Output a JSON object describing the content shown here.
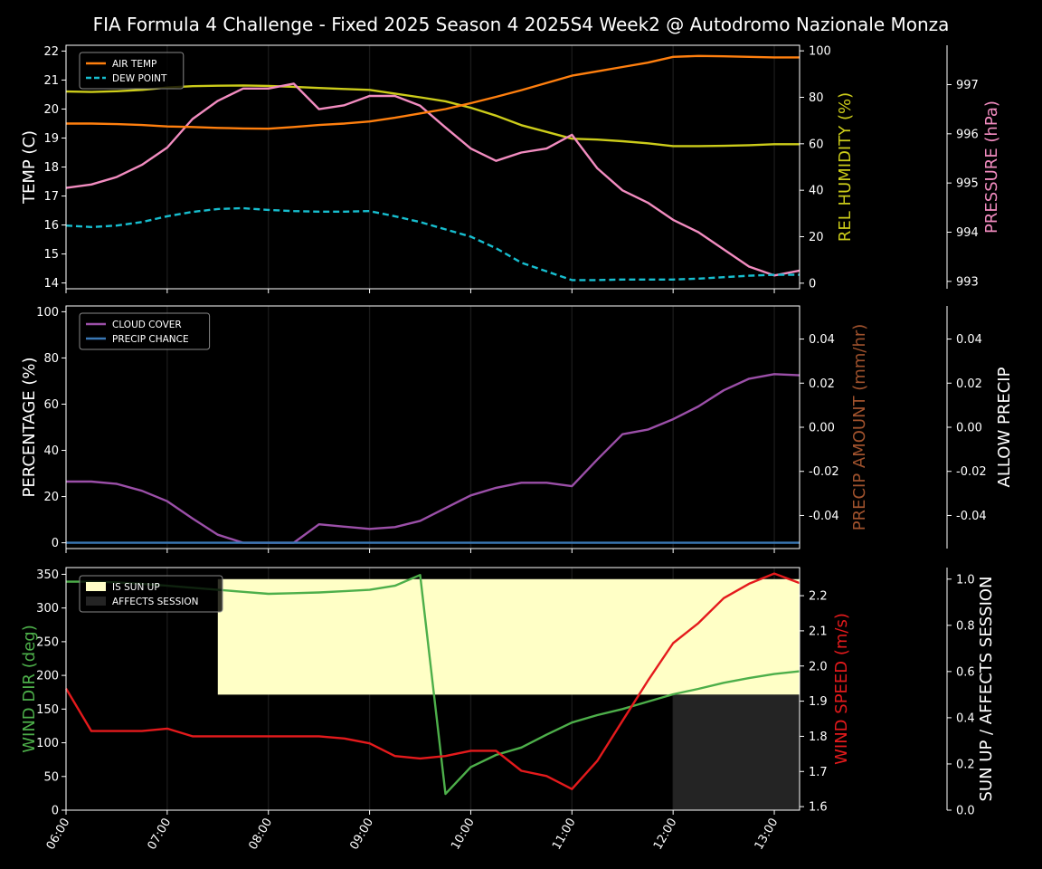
{
  "title": "FIA Formula 4 Challenge - Fixed 2025 Season 4 2025S4 Week2 @ Autodromo Nazionale Monza",
  "colors": {
    "background": "#000000",
    "axis": "#ffffff",
    "air_temp": "#ff7f0e",
    "dew_point": "#17becf",
    "humidity": "#cccc1a",
    "pressure": "#f28cc0",
    "cloud": "#9b4fa8",
    "precip": "#3a78b5",
    "precip_amount_label": "#a0522d",
    "wind_dir": "#4daf4a",
    "wind_speed": "#e41a1c",
    "sun_up": "#ffffc6",
    "affects_session": "#242424"
  },
  "chart_data": [
    {
      "type": "line",
      "panel": "temperature",
      "x": [
        "06:00",
        "06:15",
        "06:30",
        "06:45",
        "07:00",
        "07:15",
        "07:30",
        "07:45",
        "08:00",
        "08:15",
        "08:30",
        "08:45",
        "09:00",
        "09:15",
        "09:30",
        "09:45",
        "10:00",
        "10:15",
        "10:30",
        "10:45",
        "11:00",
        "11:15",
        "11:30",
        "11:45",
        "12:00",
        "12:15",
        "12:30",
        "12:45",
        "13:00",
        "13:15"
      ],
      "xticks": [
        "06:00",
        "07:00",
        "08:00",
        "09:00",
        "10:00",
        "11:00",
        "12:00",
        "13:00"
      ],
      "xlim": [
        "06:00",
        "13:15"
      ],
      "ylabel": "TEMP (C)",
      "ylim": [
        13.8,
        22.2
      ],
      "yticks": [
        14,
        15,
        16,
        17,
        18,
        19,
        20,
        21,
        22
      ],
      "y2label": "REL HUMIDITY (%)",
      "y2lim": [
        -2.4,
        102.4
      ],
      "y2ticks": [
        0,
        20,
        40,
        60,
        80,
        100
      ],
      "y3label": "PRESSURE (hPa)",
      "y3lim": [
        992.85,
        997.8
      ],
      "y3ticks": [
        993,
        994,
        995,
        996,
        997
      ],
      "legend_position": "top-left",
      "series": [
        {
          "name": "AIR TEMP",
          "axis": "y",
          "style": "solid",
          "values": [
            19.5,
            19.5,
            19.48,
            19.45,
            19.4,
            19.38,
            19.35,
            19.33,
            19.32,
            19.38,
            19.45,
            19.5,
            19.57,
            19.7,
            19.85,
            20.0,
            20.2,
            20.42,
            20.65,
            20.9,
            21.15,
            21.3,
            21.45,
            21.6,
            21.8,
            21.83,
            21.82,
            21.8,
            21.78,
            21.78
          ]
        },
        {
          "name": "DEW POINT",
          "axis": "y",
          "style": "dashed",
          "values": [
            15.98,
            15.93,
            15.98,
            16.1,
            16.3,
            16.45,
            16.55,
            16.58,
            16.52,
            16.48,
            16.46,
            16.46,
            16.48,
            16.3,
            16.1,
            15.85,
            15.6,
            15.2,
            14.7,
            14.4,
            14.1,
            14.1,
            14.12,
            14.12,
            14.12,
            14.15,
            14.2,
            14.25,
            14.28,
            14.28
          ]
        },
        {
          "name": "REL HUMIDITY",
          "axis": "y2",
          "style": "solid",
          "unlabeled": true,
          "values": [
            82.5,
            82.3,
            82.6,
            83.2,
            84.2,
            84.8,
            85.0,
            85.1,
            84.9,
            84.5,
            84.0,
            83.6,
            83.2,
            81.6,
            80.0,
            78.3,
            75.5,
            72.1,
            68.0,
            65.1,
            62.2,
            61.8,
            61.1,
            60.2,
            59.0,
            59.0,
            59.1,
            59.4,
            59.8,
            59.8
          ]
        },
        {
          "name": "PRESSURE",
          "axis": "y3",
          "style": "solid",
          "unlabeled": true,
          "values": [
            994.9,
            994.97,
            995.12,
            995.37,
            995.72,
            996.3,
            996.67,
            996.92,
            996.92,
            997.02,
            996.5,
            996.58,
            996.77,
            996.77,
            996.57,
            996.13,
            995.7,
            995.45,
            995.62,
            995.7,
            995.98,
            995.3,
            994.85,
            994.6,
            994.25,
            994.0,
            993.65,
            993.3,
            993.12,
            993.22
          ]
        }
      ]
    },
    {
      "type": "line",
      "panel": "clouds",
      "x": [
        "06:00",
        "06:15",
        "06:30",
        "06:45",
        "07:00",
        "07:15",
        "07:30",
        "07:45",
        "08:00",
        "08:15",
        "08:30",
        "08:45",
        "09:00",
        "09:15",
        "09:30",
        "09:45",
        "10:00",
        "10:15",
        "10:30",
        "10:45",
        "11:00",
        "11:15",
        "11:30",
        "11:45",
        "12:00",
        "12:15",
        "12:30",
        "12:45",
        "13:00",
        "13:15"
      ],
      "ylabel": "PERCENTAGE (%)",
      "ylim": [
        -2.5,
        102.5
      ],
      "yticks": [
        0,
        20,
        40,
        60,
        80,
        100
      ],
      "y2label": "PRECIP AMOUNT (mm/hr)",
      "y2lim": [
        -0.055,
        0.055
      ],
      "y2ticks": [
        -0.04,
        -0.02,
        0.0,
        0.02,
        0.04
      ],
      "y3label": "ALLOW PRECIP",
      "y3lim": [
        -0.055,
        0.055
      ],
      "y3ticks": [
        -0.04,
        -0.02,
        0.0,
        0.02,
        0.04
      ],
      "legend_position": "top-left",
      "series": [
        {
          "name": "CLOUD COVER",
          "values": [
            26.5,
            26.5,
            25.5,
            22.5,
            18.0,
            10.5,
            3.5,
            0,
            0,
            0,
            8.0,
            7.0,
            6.0,
            6.8,
            9.5,
            15.0,
            20.5,
            23.8,
            26.0,
            26.0,
            24.5,
            36.0,
            47.0,
            49.0,
            53.5,
            59.0,
            66.0,
            71.0,
            73.0,
            72.5
          ]
        },
        {
          "name": "PRECIP CHANCE",
          "values": [
            0,
            0,
            0,
            0,
            0,
            0,
            0,
            0,
            0,
            0,
            0,
            0,
            0,
            0,
            0,
            0,
            0,
            0,
            0,
            0,
            0,
            0,
            0,
            0,
            0,
            0,
            0,
            0,
            0,
            0
          ]
        }
      ]
    },
    {
      "type": "line",
      "panel": "wind",
      "x": [
        "06:00",
        "06:15",
        "06:30",
        "06:45",
        "07:00",
        "07:15",
        "07:30",
        "07:45",
        "08:00",
        "08:15",
        "08:30",
        "08:45",
        "09:00",
        "09:15",
        "09:30",
        "09:45",
        "10:00",
        "10:15",
        "10:30",
        "10:45",
        "11:00",
        "11:15",
        "11:30",
        "11:45",
        "12:00",
        "12:15",
        "12:30",
        "12:45",
        "13:00",
        "13:15"
      ],
      "ylabel": "WIND DIR (deg)",
      "ylim": [
        0,
        360
      ],
      "yticks": [
        0,
        50,
        100,
        150,
        200,
        250,
        300,
        350
      ],
      "y2label": "WIND SPEED (m/s)",
      "y2lim": [
        1.59,
        2.28
      ],
      "y2ticks": [
        1.6,
        1.7,
        1.8,
        1.9,
        2.0,
        2.1,
        2.2
      ],
      "y3label": "SUN UP / AFFECTS SESSION",
      "y3lim": [
        0.0,
        1.05
      ],
      "y3ticks": [
        0.0,
        0.2,
        0.4,
        0.6,
        0.8,
        1.0
      ],
      "legend_position": "top-left",
      "series": [
        {
          "name": "WIND DIR",
          "unlabeled": true,
          "values": [
            339,
            339,
            338,
            336,
            333,
            330,
            327,
            324,
            321,
            322,
            323,
            325,
            327,
            333,
            349,
            24,
            64,
            82,
            93,
            112,
            130,
            141,
            150,
            161,
            172,
            180,
            189,
            196,
            202,
            206
          ]
        },
        {
          "name": "WIND SPEED",
          "unlabeled": true,
          "values": [
            1.936,
            1.815,
            1.815,
            1.815,
            1.822,
            1.8,
            1.8,
            1.8,
            1.8,
            1.8,
            1.8,
            1.794,
            1.78,
            1.744,
            1.737,
            1.744,
            1.759,
            1.759,
            1.702,
            1.687,
            1.65,
            1.73,
            1.844,
            1.958,
            2.065,
            2.122,
            2.193,
            2.234,
            2.263,
            2.236
          ]
        }
      ],
      "spans": [
        {
          "name": "IS SUN UP",
          "from": "07:30",
          "to": "13:15",
          "level": 1.0
        },
        {
          "name": "AFFECTS SESSION",
          "from": "12:00",
          "to": "13:15",
          "level": 0.5
        }
      ]
    }
  ]
}
